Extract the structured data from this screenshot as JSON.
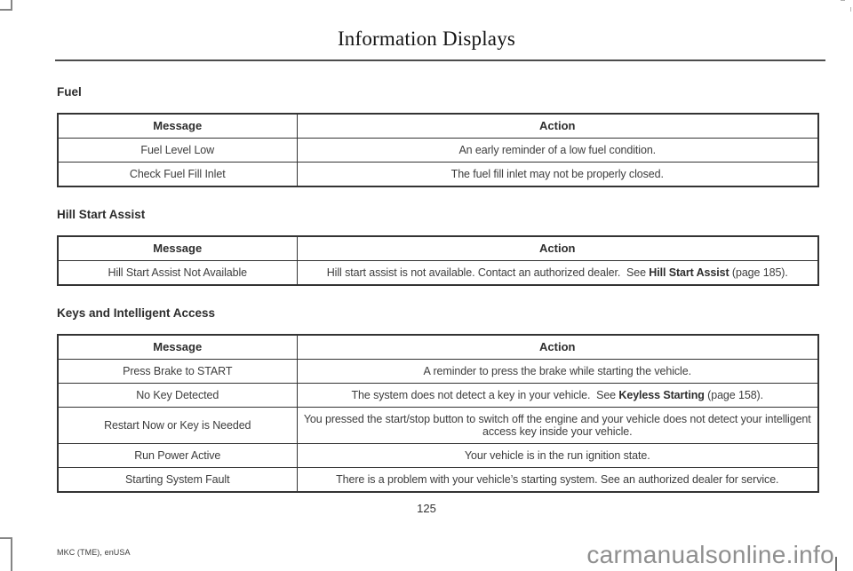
{
  "page": {
    "header_title": "Information Displays",
    "page_number": "125",
    "footer_left": "MKC (TME), enUSA",
    "watermark": "carmanualsonline.info"
  },
  "colors": {
    "table_border": "#333333",
    "body_text": "#3d3d3d",
    "watermark_gray": "#8f8f8f"
  },
  "sections": [
    {
      "title": "Fuel",
      "columns": [
        "Message",
        "Action"
      ],
      "rows": [
        {
          "message": "Fuel Level Low",
          "action": [
            {
              "text": "An early reminder of a low fuel condition.",
              "bold": false
            }
          ]
        },
        {
          "message": "Check Fuel Fill Inlet",
          "action": [
            {
              "text": "The fuel fill inlet may not be properly closed.",
              "bold": false
            }
          ]
        }
      ]
    },
    {
      "title": "Hill Start Assist",
      "columns": [
        "Message",
        "Action"
      ],
      "rows": [
        {
          "message": "Hill Start Assist Not Available",
          "action": [
            {
              "text": "Hill start assist is not available. Contact an authorized dealer.  See ",
              "bold": false
            },
            {
              "text": "Hill Start Assist",
              "bold": true
            },
            {
              "text": " (page 185).",
              "bold": false
            }
          ]
        }
      ]
    },
    {
      "title": "Keys and Intelligent Access",
      "columns": [
        "Message",
        "Action"
      ],
      "rows": [
        {
          "message": "Press Brake to START",
          "action": [
            {
              "text": "A reminder to press the brake while starting the vehicle.",
              "bold": false
            }
          ]
        },
        {
          "message": "No Key Detected",
          "action": [
            {
              "text": "The system does not detect a key in your vehicle.  See ",
              "bold": false
            },
            {
              "text": "Keyless Starting",
              "bold": true
            },
            {
              "text": " (page 158).",
              "bold": false
            }
          ]
        },
        {
          "message": "Restart Now or Key is Needed",
          "action": [
            {
              "text": "You pressed the start/stop button to switch off the engine and your vehicle does not detect your intelligent access key inside your vehicle.",
              "bold": false
            }
          ]
        },
        {
          "message": "Run Power Active",
          "action": [
            {
              "text": "Your vehicle is in the run ignition state.",
              "bold": false
            }
          ]
        },
        {
          "message": "Starting System Fault",
          "action": [
            {
              "text": "There is a problem with your vehicle’s starting system. See an authorized dealer for service.",
              "bold": false
            }
          ]
        }
      ]
    }
  ]
}
